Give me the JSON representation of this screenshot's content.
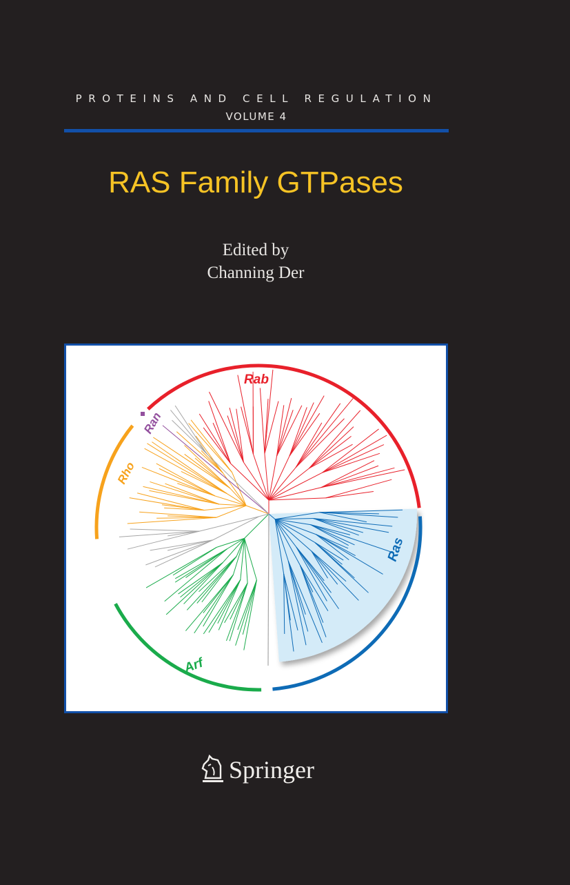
{
  "cover": {
    "series": "PROTEINS AND CELL REGULATION",
    "volume": "VOLUME 4",
    "title": "RAS Family GTPases",
    "edited_by": "Edited by",
    "editor": "Channing Der",
    "publisher": "Springer",
    "publisher_logo_icon": "knight-horse-icon"
  },
  "figure": {
    "clades": [
      {
        "label": "Rab",
        "color": "#e8202a"
      },
      {
        "label": "Ran",
        "color": "#93509e"
      },
      {
        "label": "Rho",
        "color": "#f7a21c"
      },
      {
        "label": "Arf",
        "color": "#1aab4b"
      },
      {
        "label": "Ras",
        "color": "#0e6bb6"
      }
    ],
    "unassigned_color": "#a6a6a6",
    "ras_highlight_color": "#d4ebf8"
  },
  "colors": {
    "background": "#231f20",
    "rule": "#1250a8",
    "title": "#f6c325"
  }
}
